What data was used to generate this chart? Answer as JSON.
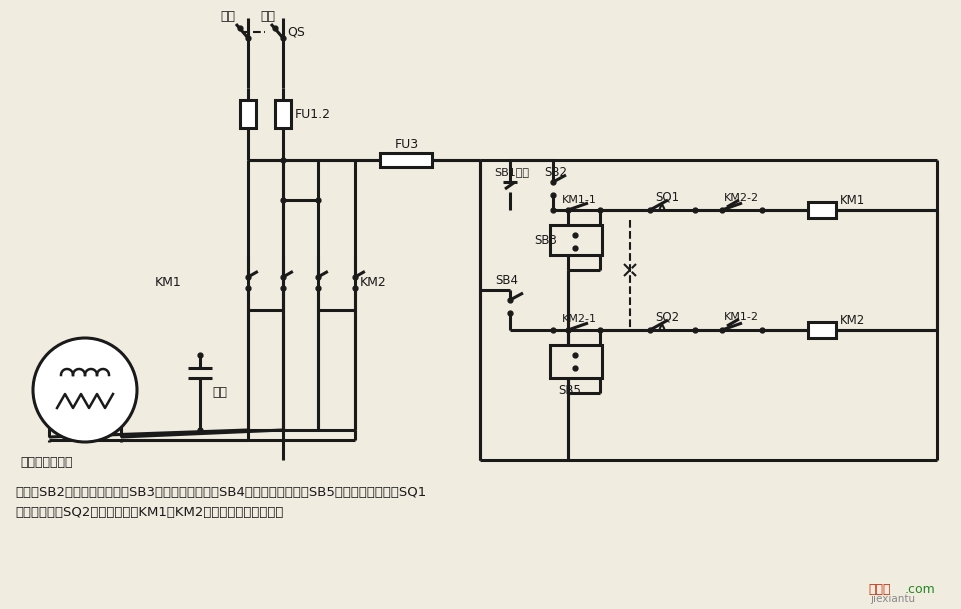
{
  "bg_color": "#f0ece0",
  "lc": "#1a1a1a",
  "desc1": "说明：SB2为上升启动按钮，SB3为上升点动按钮，SB4为下降启动按钮，SB5为下降点动按钮；SQ1",
  "desc2": "为最高限位，SQ2为最低限位。KM1、KM2可用中间继电器代替。",
  "motor_label": "单相电容电动机",
  "cap_label": "电容",
  "wm1": "接线图",
  "wm2": ".com",
  "wm3": "jiexiantu"
}
